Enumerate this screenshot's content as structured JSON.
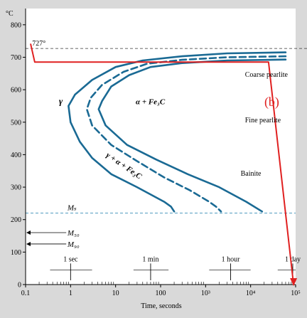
{
  "chart_data": {
    "type": "line",
    "title": "",
    "xlabel": "Time, seconds",
    "ylabel": "°C",
    "x_scale": "log",
    "xlim": [
      0.1,
      100000
    ],
    "ylim": [
      0,
      850
    ],
    "x_ticks": [
      {
        "value": 0.1,
        "label": "0.1"
      },
      {
        "value": 1,
        "label": "1"
      },
      {
        "value": 10,
        "label": "10"
      },
      {
        "value": 100,
        "label": "100"
      },
      {
        "value": 1000,
        "label": "10³"
      },
      {
        "value": 10000,
        "label": "10⁴"
      },
      {
        "value": 100000,
        "label": "10⁵"
      }
    ],
    "y_ticks": [
      0,
      100,
      200,
      300,
      400,
      500,
      600,
      700,
      800
    ],
    "time_marks": [
      {
        "label": "1 sec",
        "value": 1
      },
      {
        "label": "1 min",
        "value": 60
      },
      {
        "label": "1 hour",
        "value": 3600
      },
      {
        "label": "1 day",
        "value": 86400
      }
    ],
    "eutectoid": {
      "label": "727°",
      "value": 727
    },
    "ms_line": {
      "label": "Mₛ",
      "value": 220
    },
    "m_marks": [
      {
        "label": "M₅₀",
        "value": 160
      },
      {
        "label": "M₉₀",
        "value": 125
      }
    ],
    "region_labels": [
      {
        "text": "γ",
        "x": 0.55,
        "y": 555
      },
      {
        "text": "α + Fe₃C",
        "x": 28,
        "y": 555
      },
      {
        "text": "γ + α + Fe₃C",
        "x": 6,
        "y": 395
      },
      {
        "text": "Coarse pearlite",
        "x": 7500,
        "y": 640
      },
      {
        "text": "Fine pearlite",
        "x": 7500,
        "y": 500
      },
      {
        "text": "Bainite",
        "x": 6000,
        "y": 335
      }
    ],
    "annotation": {
      "text": "(b)",
      "x": 60000,
      "y": 550
    },
    "series": [
      {
        "style": "solid",
        "color": "#1a6a94",
        "points": [
          [
            60000,
            715
          ],
          [
            3000,
            712
          ],
          [
            300,
            703
          ],
          [
            40,
            690
          ],
          [
            10,
            670
          ],
          [
            3,
            630
          ],
          [
            1.25,
            585
          ],
          [
            0.9,
            550
          ],
          [
            1,
            500
          ],
          [
            1.6,
            440
          ],
          [
            3,
            390
          ],
          [
            8,
            340
          ],
          [
            30,
            300
          ],
          [
            120,
            255
          ],
          [
            170,
            240
          ],
          [
            200,
            225
          ]
        ]
      },
      {
        "style": "dashed",
        "color": "#1a6a94",
        "points": [
          [
            60000,
            703
          ],
          [
            3000,
            700
          ],
          [
            300,
            692
          ],
          [
            50,
            680
          ],
          [
            15,
            655
          ],
          [
            5,
            615
          ],
          [
            2.8,
            575
          ],
          [
            2.3,
            540
          ],
          [
            3,
            490
          ],
          [
            8,
            430
          ],
          [
            30,
            380
          ],
          [
            120,
            330
          ],
          [
            450,
            290
          ],
          [
            1200,
            255
          ],
          [
            1700,
            240
          ],
          [
            2200,
            225
          ]
        ]
      },
      {
        "style": "solid",
        "color": "#1a6a94",
        "points": [
          [
            60000,
            693
          ],
          [
            3000,
            690
          ],
          [
            300,
            682
          ],
          [
            60,
            670
          ],
          [
            20,
            645
          ],
          [
            8,
            610
          ],
          [
            5,
            565
          ],
          [
            4.2,
            540
          ],
          [
            6,
            490
          ],
          [
            18,
            430
          ],
          [
            80,
            385
          ],
          [
            400,
            340
          ],
          [
            2000,
            300
          ],
          [
            8000,
            255
          ],
          [
            18000,
            225
          ]
        ]
      },
      {
        "name": "(b)",
        "style": "solid",
        "color": "#e02020",
        "points": [
          [
            0.13,
            740
          ],
          [
            0.16,
            685
          ],
          [
            25000,
            685
          ],
          [
            90000,
            0
          ]
        ]
      }
    ]
  }
}
